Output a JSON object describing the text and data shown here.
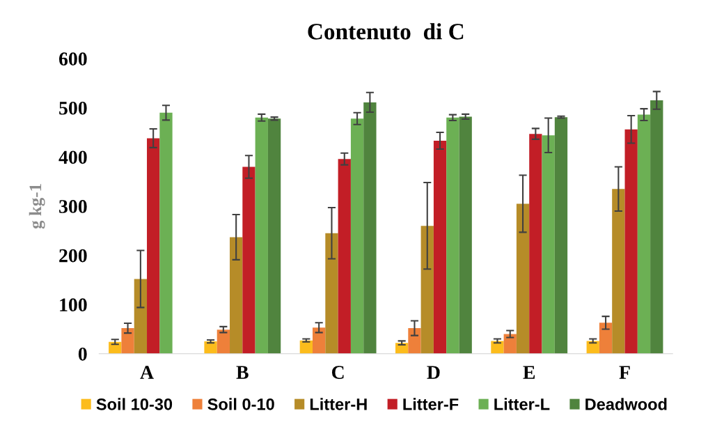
{
  "chart_data": {
    "type": "bar",
    "title": "Contenuto  di C",
    "ylabel": "g kg-1",
    "categories": [
      "A",
      "B",
      "C",
      "D",
      "E",
      "F"
    ],
    "ylim": [
      0,
      600
    ],
    "yticks": [
      0,
      100,
      200,
      300,
      400,
      500,
      600
    ],
    "grid": false,
    "legend": "bottom",
    "series": [
      {
        "name": "Soil 10-30",
        "color": "#fcbc1c",
        "values": [
          24,
          25,
          27,
          22,
          26,
          26
        ],
        "errors": [
          5,
          3,
          3,
          4,
          4,
          4
        ]
      },
      {
        "name": "Soil 0-10",
        "color": "#ee803a",
        "values": [
          52,
          49,
          53,
          52,
          40,
          63
        ],
        "errors": [
          10,
          6,
          10,
          15,
          7,
          13
        ]
      },
      {
        "name": "Litter-H",
        "color": "#b68c28",
        "values": [
          152,
          237,
          245,
          260,
          305,
          335
        ],
        "errors": [
          58,
          46,
          52,
          88,
          58,
          45
        ]
      },
      {
        "name": "Litter-F",
        "color": "#c21e26",
        "values": [
          438,
          380,
          396,
          433,
          447,
          456
        ],
        "errors": [
          19,
          23,
          12,
          17,
          11,
          28
        ]
      },
      {
        "name": "Litter-L",
        "color": "#6cb054",
        "values": [
          490,
          480,
          478,
          480,
          444,
          486
        ],
        "errors": [
          15,
          7,
          12,
          6,
          35,
          12
        ]
      },
      {
        "name": "Deadwood",
        "color": "#50843e",
        "values": [
          null,
          478,
          511,
          482,
          481,
          515
        ],
        "errors": [
          null,
          3,
          20,
          5,
          2,
          18
        ]
      }
    ]
  }
}
